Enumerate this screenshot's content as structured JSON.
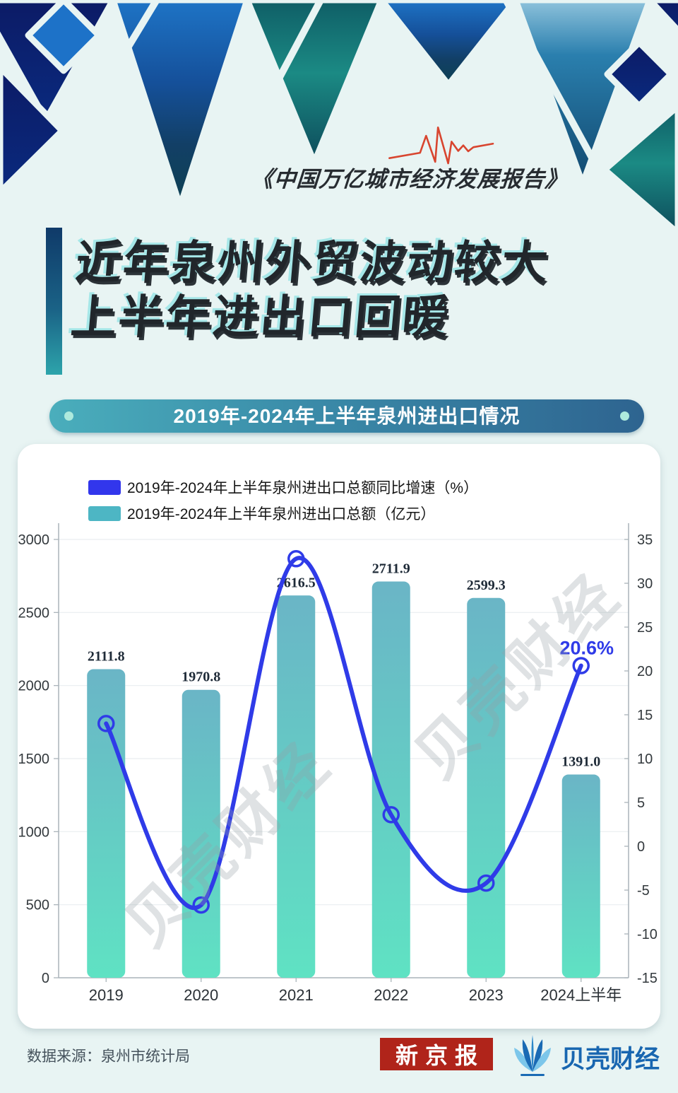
{
  "header": {
    "report_title": "《中国万亿城市经济发展报告》",
    "title_line1": "近年泉州外贸波动较大",
    "title_line2": "上半年进出口回暖",
    "banner_title": "2019年-2024年上半年泉州进出口情况",
    "pulse_color": "#d8452f"
  },
  "chart_data": {
    "type": "bar+line",
    "categories": [
      "2019",
      "2020",
      "2021",
      "2022",
      "2023",
      "2024上半年"
    ],
    "series": [
      {
        "name": "2019年-2024年上半年泉州进出口总额同比增速（%）",
        "type": "line",
        "axis": "right",
        "values": [
          14.0,
          -6.7,
          32.8,
          3.6,
          -4.2,
          20.6
        ],
        "color": "#2f3be8"
      },
      {
        "name": "2019年-2024年上半年泉州进出口总额（亿元）",
        "type": "bar",
        "axis": "left",
        "values": [
          2111.8,
          1970.8,
          2616.5,
          2711.9,
          2599.3,
          1391.0
        ],
        "color_top": "#6ab5c6",
        "color_bottom": "#5fe2c3"
      }
    ],
    "left_axis": {
      "min": 0,
      "max": 3000,
      "step": 500
    },
    "right_axis": {
      "min": -15,
      "max": 35,
      "step": 5
    },
    "annotation": {
      "text": "20.6%",
      "series": 0,
      "point": 5
    },
    "grid": true,
    "legend_position": "top-left",
    "legend_swatch_colors": [
      "#3236ec",
      "#4db6c4"
    ]
  },
  "watermark": {
    "text": "贝壳财经"
  },
  "footer": {
    "source": "数据来源：泉州市统计局",
    "logo1": "新京报",
    "logo2": "贝壳财经"
  }
}
